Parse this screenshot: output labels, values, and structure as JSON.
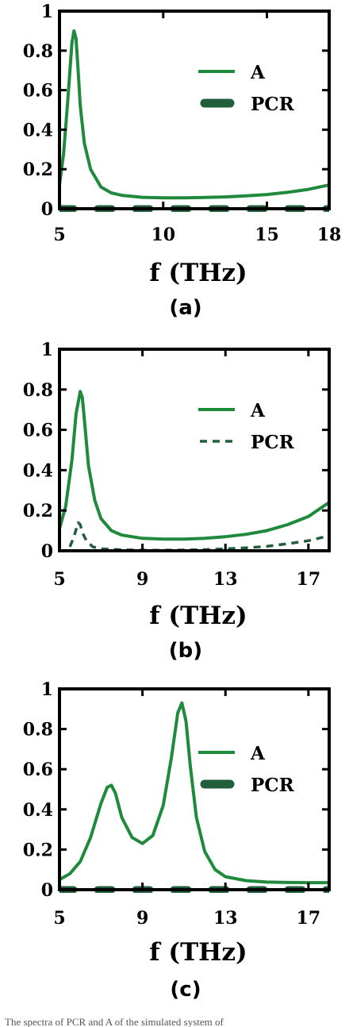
{
  "caption": "The spectra of PCR and A of the simulated system of",
  "colors": {
    "A": "#1f8a3c",
    "PCR": "#215f3c"
  },
  "chart_data": [
    {
      "panel": "(a)",
      "type": "line",
      "xlabel": "f (THz)",
      "ylabel": "",
      "xlim": [
        5,
        18
      ],
      "ylim": [
        0,
        1
      ],
      "xticks": [
        5,
        10,
        15,
        18
      ],
      "yticks": [
        0,
        0.2,
        0.4,
        0.6,
        0.8,
        1
      ],
      "ytick_labels": [
        "0",
        "0.2",
        "0.4",
        "0.6",
        "0.8",
        "1"
      ],
      "legend_position": "center-right",
      "series": [
        {
          "name": "A",
          "style": "solid",
          "x": [
            5.0,
            5.2,
            5.4,
            5.6,
            5.7,
            5.8,
            5.9,
            6.0,
            6.2,
            6.5,
            7.0,
            7.5,
            8.0,
            9.0,
            10.0,
            11.0,
            12.0,
            13.0,
            14.0,
            15.0,
            16.0,
            17.0,
            18.0
          ],
          "y": [
            0.12,
            0.28,
            0.55,
            0.84,
            0.9,
            0.86,
            0.7,
            0.52,
            0.33,
            0.2,
            0.11,
            0.08,
            0.068,
            0.058,
            0.055,
            0.055,
            0.057,
            0.06,
            0.065,
            0.072,
            0.083,
            0.098,
            0.12
          ]
        },
        {
          "name": "PCR",
          "style": "thick-dash",
          "x": [
            5.0,
            18.0
          ],
          "y": [
            0.0,
            0.0
          ]
        }
      ]
    },
    {
      "panel": "(b)",
      "type": "line",
      "xlabel": "f (THz)",
      "ylabel": "",
      "xlim": [
        5,
        18
      ],
      "ylim": [
        0,
        1
      ],
      "xticks": [
        5,
        9,
        13,
        17
      ],
      "yticks": [
        0,
        0.2,
        0.4,
        0.6,
        0.8,
        1
      ],
      "ytick_labels": [
        "0",
        "0.2",
        "0.4",
        "0.6",
        "0.8",
        "1"
      ],
      "legend_position": "center-right",
      "series": [
        {
          "name": "A",
          "style": "solid",
          "x": [
            5.0,
            5.3,
            5.6,
            5.8,
            6.0,
            6.1,
            6.2,
            6.4,
            6.7,
            7.0,
            7.5,
            8.0,
            9.0,
            10.0,
            11.0,
            12.0,
            13.0,
            14.0,
            15.0,
            16.0,
            17.0,
            18.0
          ],
          "y": [
            0.11,
            0.22,
            0.45,
            0.68,
            0.79,
            0.76,
            0.65,
            0.42,
            0.25,
            0.16,
            0.1,
            0.078,
            0.062,
            0.058,
            0.058,
            0.062,
            0.07,
            0.082,
            0.1,
            0.13,
            0.17,
            0.24
          ]
        },
        {
          "name": "PCR",
          "style": "dashed",
          "x": [
            5.5,
            5.7,
            5.9,
            6.0,
            6.1,
            6.3,
            6.6,
            7.0,
            8.0,
            9.0,
            10.0,
            11.0,
            12.0,
            13.0,
            14.0,
            15.0,
            16.0,
            17.0,
            18.0
          ],
          "y": [
            0.02,
            0.07,
            0.14,
            0.13,
            0.09,
            0.05,
            0.02,
            0.01,
            0.005,
            0.003,
            0.003,
            0.004,
            0.006,
            0.01,
            0.015,
            0.022,
            0.035,
            0.05,
            0.075
          ]
        }
      ]
    },
    {
      "panel": "(c)",
      "type": "line",
      "xlabel": "f (THz)",
      "ylabel": "",
      "xlim": [
        5,
        18
      ],
      "ylim": [
        0,
        1
      ],
      "xticks": [
        5,
        9,
        13,
        17
      ],
      "yticks": [
        0,
        0.2,
        0.4,
        0.6,
        0.8,
        1
      ],
      "ytick_labels": [
        "0",
        "0.2",
        "0.4",
        "0.6",
        "0.8",
        "1"
      ],
      "legend_position": "center-right",
      "series": [
        {
          "name": "A",
          "style": "solid",
          "x": [
            5.0,
            5.5,
            6.0,
            6.5,
            7.0,
            7.3,
            7.5,
            7.7,
            8.0,
            8.5,
            9.0,
            9.5,
            10.0,
            10.4,
            10.7,
            10.9,
            11.1,
            11.3,
            11.6,
            12.0,
            12.5,
            13.0,
            14.0,
            15.0,
            16.0,
            17.0,
            18.0
          ],
          "y": [
            0.05,
            0.08,
            0.14,
            0.26,
            0.43,
            0.51,
            0.52,
            0.48,
            0.36,
            0.26,
            0.23,
            0.27,
            0.42,
            0.66,
            0.88,
            0.93,
            0.84,
            0.62,
            0.36,
            0.19,
            0.1,
            0.065,
            0.045,
            0.038,
            0.036,
            0.035,
            0.035
          ]
        },
        {
          "name": "PCR",
          "style": "thick-dash",
          "x": [
            5.0,
            18.0
          ],
          "y": [
            0.0,
            0.0
          ]
        }
      ]
    }
  ]
}
